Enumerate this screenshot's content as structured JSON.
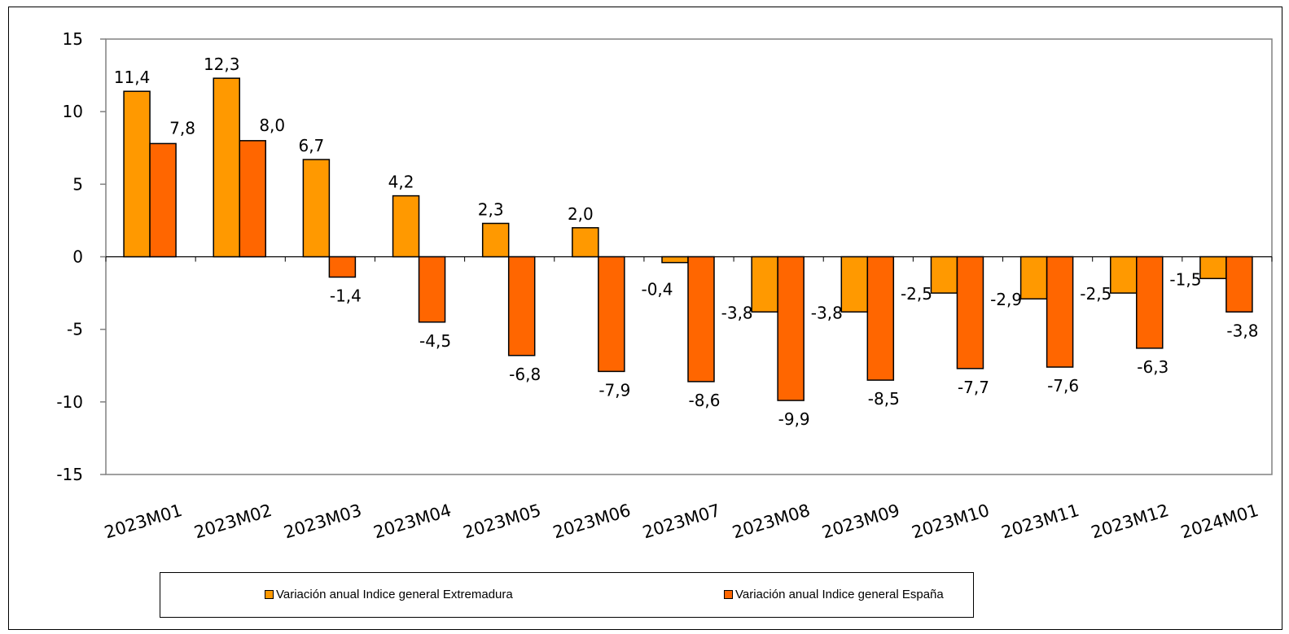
{
  "colors": {
    "extremadura": "#FF9900",
    "espana": "#FF6600",
    "axis": "#808080",
    "outline": "#000000"
  },
  "chart_data": {
    "type": "bar",
    "title": "",
    "xlabel": "",
    "ylabel": "",
    "ylim": [
      -15,
      15
    ],
    "yticks": [
      15,
      10,
      5,
      0,
      -5,
      -10,
      -15
    ],
    "grid": false,
    "legend_position": "bottom",
    "categories": [
      "2023M01",
      "2023M02",
      "2023M03",
      "2023M04",
      "2023M05",
      "2023M06",
      "2023M07",
      "2023M08",
      "2023M09",
      "2023M10",
      "2023M11",
      "2023M12",
      "2024M01"
    ],
    "series": [
      {
        "name": "Variación anual Indice general Extremadura",
        "values": [
          11.4,
          12.3,
          6.7,
          4.2,
          2.3,
          2.0,
          -0.4,
          -3.8,
          -3.8,
          -2.5,
          -2.9,
          -2.5,
          -1.5
        ],
        "labels": [
          "11,4",
          "12,3",
          "6,7",
          "4,2",
          "2,3",
          "2,0",
          "-0,4",
          "-3,8",
          "-3,8",
          "-2,5",
          "-2,9",
          "-2,5",
          "-1,5"
        ]
      },
      {
        "name": "Variación anual Indice general España",
        "values": [
          7.8,
          8.0,
          -1.4,
          -4.5,
          -6.8,
          -7.9,
          -8.6,
          -9.9,
          -8.5,
          -7.7,
          -7.6,
          -6.3,
          -3.8
        ],
        "labels": [
          "7,8",
          "8,0",
          "-1,4",
          "-4,5",
          "-6,8",
          "-7,9",
          "-8,6",
          "-9,9",
          "-8,5",
          "-7,7",
          "-7,6",
          "-6,3",
          "-3,8"
        ]
      }
    ]
  },
  "legend": {
    "items": [
      {
        "label": "Variación anual Indice general Extremadura"
      },
      {
        "label": "Variación anual Indice general España"
      }
    ]
  }
}
